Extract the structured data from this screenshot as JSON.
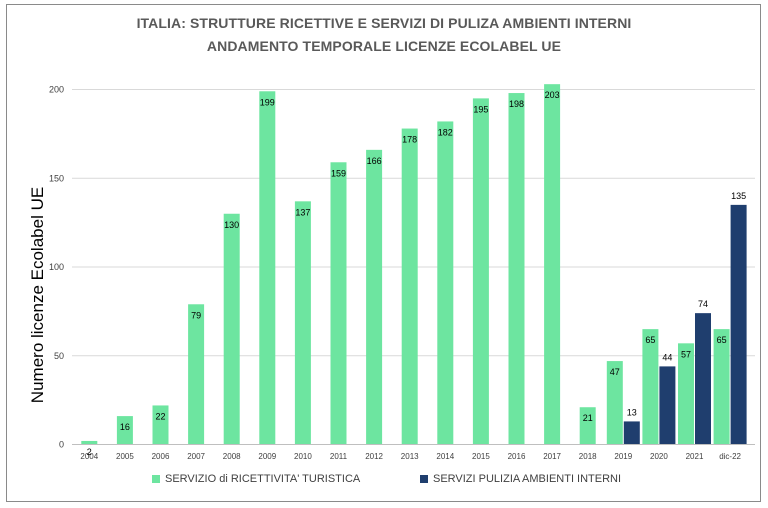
{
  "chart_data": {
    "type": "bar",
    "title": "ITALIA:  STRUTTURE RICETTIVE E SERVIZI DI PULIZA AMBIENTI INTERNI",
    "subtitle": "ANDAMENTO TEMPORALE LICENZE ECOLABEL UE",
    "xlabel": "",
    "ylabel": "Numero licenze Ecolabel UE",
    "ylim": [
      0,
      210
    ],
    "yticks": [
      0,
      50,
      100,
      150,
      200
    ],
    "grid": true,
    "legend_position": "bottom",
    "categories": [
      "2004",
      "2005",
      "2006",
      "2007",
      "2008",
      "2009",
      "2010",
      "2011",
      "2012",
      "2013",
      "2014",
      "2015",
      "2016",
      "2017",
      "2018",
      "2019",
      "2020",
      "2021",
      "dic-22"
    ],
    "series": [
      {
        "name": "SERVIZIO di RICETTIVITA' TURISTICA",
        "color": "#6de5a0",
        "values": [
          2,
          16,
          22,
          79,
          130,
          199,
          137,
          159,
          166,
          178,
          182,
          195,
          198,
          203,
          21,
          47,
          65,
          57,
          65
        ]
      },
      {
        "name": "SERVIZI PULIZIA AMBIENTI INTERNI",
        "color": "#1f3e6e",
        "values": [
          null,
          null,
          null,
          null,
          null,
          null,
          null,
          null,
          null,
          null,
          null,
          null,
          null,
          null,
          null,
          13,
          44,
          74,
          135
        ]
      }
    ]
  }
}
